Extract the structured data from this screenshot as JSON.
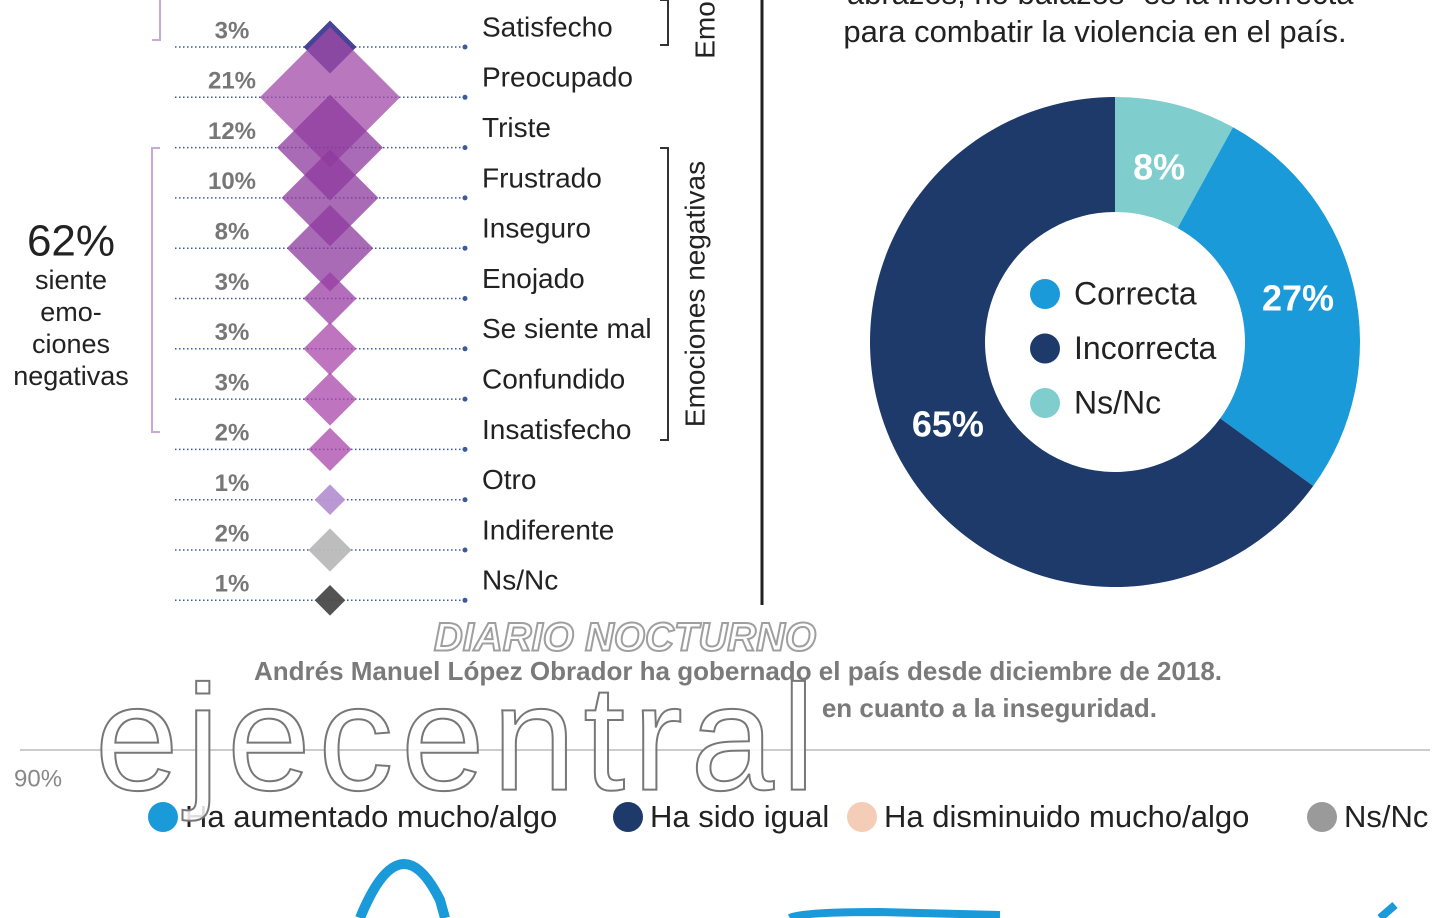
{
  "chart_data": [
    {
      "type": "diamond",
      "categories": [
        "Satisfecho",
        "Preocupado",
        "Triste",
        "Frustrado",
        "Inseguro",
        "Enojado",
        "Se siente mal",
        "Confundido",
        "Insatisfecho",
        "Otro",
        "Indiferente",
        "Ns/Nc"
      ],
      "values": [
        3,
        21,
        12,
        10,
        8,
        3,
        3,
        3,
        2,
        1,
        2,
        1
      ],
      "value_labels": [
        "3%",
        "21%",
        "12%",
        "10%",
        "8%",
        "3%",
        "3%",
        "3%",
        "2%",
        "1%",
        "2%",
        "1%"
      ],
      "colors": [
        "#3d3a8f",
        "#a24aa8",
        "#8e3a9e",
        "#8e3a9e",
        "#8e3a9e",
        "#9a3ea4",
        "#a845aa",
        "#a845aa",
        "#a845aa",
        "#b592d2",
        "#b9b9b9",
        "#4a4a4a"
      ],
      "group_labels": [
        "Emo",
        "Emociones negativas"
      ],
      "annotation": [
        "62%",
        "siente",
        "emo-",
        "ciones",
        "negativas"
      ]
    },
    {
      "type": "donut",
      "title_lines": [
        "“abrazos, no balazos” es la incorrecta",
        "para combatir la violencia en el país."
      ],
      "categories": [
        "Correcta",
        "Incorrecta",
        "Ns/Nc"
      ],
      "values": [
        27,
        65,
        8
      ],
      "value_labels": [
        "27%",
        "65%",
        "8%"
      ],
      "colors": [
        "#1a9ad9",
        "#1d3a6a",
        "#7fcdcd"
      ]
    },
    {
      "type": "line",
      "intro_lines": [
        "Andrés Manuel López Obrador ha gobernado el país desde diciembre de 2018.",
        "en cuanto a la inseguridad."
      ],
      "yticks": [
        {
          "value": 90,
          "label": "90%"
        }
      ],
      "series": [
        {
          "name": "Ha aumentado mucho/algo",
          "color": "#1a9ad9"
        },
        {
          "name": "Ha sido igual",
          "color": "#1d3a6a"
        },
        {
          "name": "Ha disminuido mucho/algo",
          "color": "#f5cdb6"
        },
        {
          "name": "Ns/Nc",
          "color": "#9a9a9a"
        }
      ]
    }
  ],
  "watermark": {
    "top": "DIARIO NOCTURNO",
    "logo": "ejecentral"
  }
}
